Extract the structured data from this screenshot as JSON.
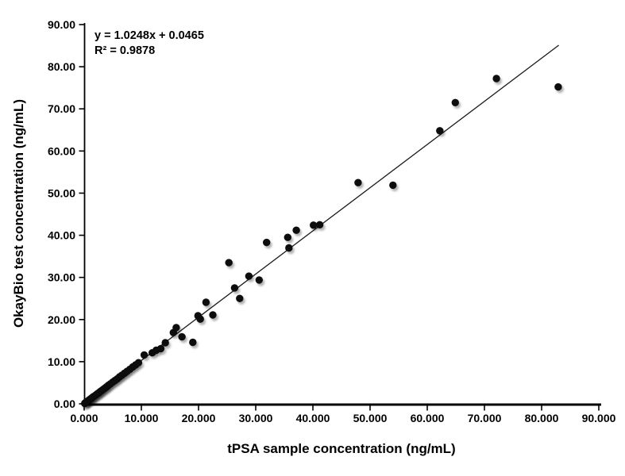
{
  "chart_data": {
    "type": "scatter",
    "title": "",
    "xlabel": "tPSA sample concentration (ng/mL)",
    "ylabel": "OkayBio test concentration (ng/mL)",
    "xlim": [
      0,
      90
    ],
    "ylim": [
      0,
      90
    ],
    "grid": false,
    "legend_position": "none",
    "x_tick_labels": [
      "0.000",
      "10.000",
      "20.000",
      "30.000",
      "40.000",
      "50.000",
      "60.000",
      "70.000",
      "80.000",
      "90.000"
    ],
    "y_tick_labels": [
      "0.00",
      "10.00",
      "20.00",
      "30.00",
      "40.00",
      "50.00",
      "60.00",
      "70.00",
      "80.00",
      "90.00"
    ],
    "tick_step": 10,
    "annotations": {
      "equation": "y = 1.0248x + 0.0465",
      "r_squared": "R² = 0.9878"
    },
    "trendline": {
      "slope": 1.0248,
      "intercept": 0.0465,
      "x_start": 0,
      "x_end": 83,
      "color": "#1a1a1a"
    },
    "point_color": "#0a0a0a",
    "axis_color": "#000000",
    "points": [
      [
        0.1,
        0.1
      ],
      [
        0.25,
        0.3
      ],
      [
        0.4,
        0.45
      ],
      [
        0.6,
        0.6
      ],
      [
        0.75,
        0.8
      ],
      [
        0.95,
        1.0
      ],
      [
        1.15,
        1.2
      ],
      [
        1.35,
        1.4
      ],
      [
        1.55,
        1.65
      ],
      [
        1.8,
        1.85
      ],
      [
        2.05,
        2.1
      ],
      [
        2.3,
        2.4
      ],
      [
        2.55,
        2.6
      ],
      [
        2.8,
        2.9
      ],
      [
        3.05,
        3.15
      ],
      [
        3.35,
        3.45
      ],
      [
        3.65,
        3.75
      ],
      [
        3.95,
        4.05
      ],
      [
        4.25,
        4.4
      ],
      [
        4.6,
        4.75
      ],
      [
        5.0,
        5.15
      ],
      [
        5.4,
        5.55
      ],
      [
        5.8,
        5.95
      ],
      [
        6.2,
        6.4
      ],
      [
        6.6,
        6.8
      ],
      [
        7.05,
        7.25
      ],
      [
        7.5,
        7.7
      ],
      [
        8.0,
        8.2
      ],
      [
        8.5,
        8.75
      ],
      [
        9.0,
        9.25
      ],
      [
        9.5,
        9.75
      ],
      [
        10.5,
        11.6
      ],
      [
        11.9,
        12.1
      ],
      [
        12.6,
        12.7
      ],
      [
        13.4,
        13.1
      ],
      [
        14.2,
        14.5
      ],
      [
        15.6,
        16.9
      ],
      [
        16.1,
        18.1
      ],
      [
        17.1,
        15.9
      ],
      [
        19.0,
        14.6
      ],
      [
        19.9,
        20.9
      ],
      [
        20.3,
        20.1
      ],
      [
        21.3,
        24.1
      ],
      [
        22.5,
        21.1
      ],
      [
        25.3,
        33.5
      ],
      [
        26.3,
        27.5
      ],
      [
        27.2,
        25.0
      ],
      [
        28.8,
        30.3
      ],
      [
        30.6,
        29.4
      ],
      [
        31.9,
        38.3
      ],
      [
        35.6,
        39.5
      ],
      [
        35.8,
        37.0
      ],
      [
        37.1,
        41.2
      ],
      [
        40.1,
        42.4
      ],
      [
        41.2,
        42.5
      ],
      [
        47.9,
        52.5
      ],
      [
        54.0,
        51.9
      ],
      [
        62.2,
        64.8
      ],
      [
        64.9,
        71.5
      ],
      [
        72.1,
        77.2
      ],
      [
        82.9,
        75.2
      ]
    ]
  }
}
